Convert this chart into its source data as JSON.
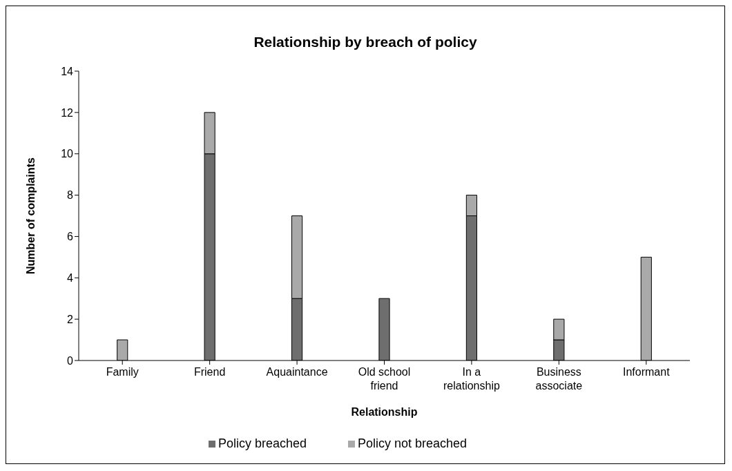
{
  "chart_data": {
    "type": "bar",
    "title": "Relationship by breach of policy",
    "xlabel": "Relationship",
    "ylabel": "Number of complaints",
    "categories": [
      "Family",
      "Friend",
      "Aquaintance",
      "Old school friend",
      "In a relationship",
      "Business associate",
      "Informant"
    ],
    "stacked": true,
    "series": [
      {
        "name": "Policy breached",
        "color": "#6e6e6e",
        "values": [
          0,
          10,
          3,
          3,
          7,
          1,
          0
        ]
      },
      {
        "name": "Policy not breached",
        "color": "#a9a9a9",
        "values": [
          1,
          2,
          4,
          0,
          1,
          1,
          5
        ]
      }
    ],
    "ylim": [
      0,
      14
    ],
    "yticks": [
      0,
      2,
      4,
      6,
      8,
      10,
      12,
      14
    ],
    "grid": false,
    "legend": "bottom"
  }
}
